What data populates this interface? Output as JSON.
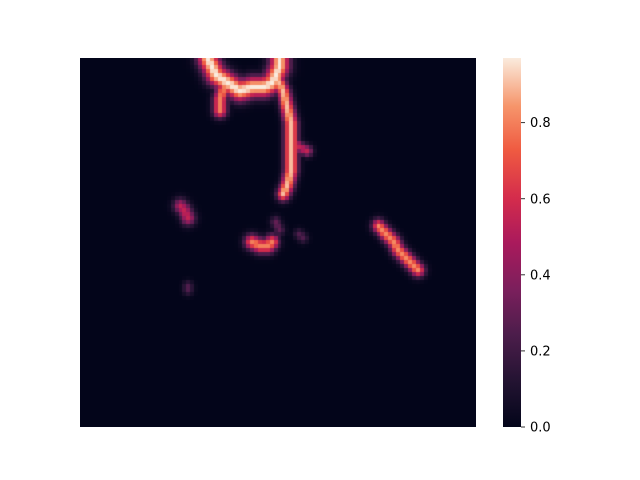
{
  "chart_data": {
    "type": "heatmap",
    "title": "",
    "xlabel": "",
    "ylabel": "",
    "x_ticks_visible": false,
    "y_ticks_visible": false,
    "colormap": "rocket",
    "colorbar": {
      "range": [
        0.0,
        0.97
      ],
      "ticks": [
        {
          "value": 0.0,
          "label": "0.0"
        },
        {
          "value": 0.2,
          "label": "0.2"
        },
        {
          "value": 0.4,
          "label": "0.4"
        },
        {
          "value": 0.6,
          "label": "0.6"
        },
        {
          "value": 0.8,
          "label": "0.8"
        }
      ],
      "placement": "right"
    },
    "grid": {
      "cols": 100,
      "rows": 93
    },
    "background_value": 0.0,
    "features": [
      {
        "name": "top-ridge",
        "path": [
          [
            32,
            0
          ],
          [
            34,
            4
          ],
          [
            37,
            6
          ],
          [
            40,
            8
          ],
          [
            43,
            7
          ],
          [
            46,
            7
          ],
          [
            48,
            6
          ],
          [
            49,
            4
          ],
          [
            50,
            2
          ],
          [
            50,
            0
          ]
        ],
        "peak": 0.97,
        "width": 1.8
      },
      {
        "name": "top-ridge-drop",
        "path": [
          [
            36,
            7
          ],
          [
            35,
            10
          ],
          [
            35,
            13
          ]
        ],
        "peak": 0.8,
        "width": 1.2
      },
      {
        "name": "vertical-branch",
        "path": [
          [
            49,
            4
          ],
          [
            51,
            8
          ],
          [
            52,
            12
          ],
          [
            53,
            16
          ],
          [
            53,
            20
          ],
          [
            53,
            24
          ],
          [
            53,
            28
          ],
          [
            52,
            32
          ],
          [
            51,
            34
          ]
        ],
        "peak": 0.9,
        "width": 1.2
      },
      {
        "name": "branch-spur",
        "path": [
          [
            53,
            20
          ],
          [
            55,
            22
          ],
          [
            57,
            23
          ]
        ],
        "peak": 0.55,
        "width": 1.0
      },
      {
        "name": "left-patch",
        "path": [
          [
            25,
            37
          ],
          [
            26,
            38
          ],
          [
            27,
            40
          ]
        ],
        "peak": 0.55,
        "width": 1.3
      },
      {
        "name": "center-segment",
        "path": [
          [
            43,
            46
          ],
          [
            45,
            47
          ],
          [
            47,
            47
          ],
          [
            48,
            46
          ]
        ],
        "peak": 0.8,
        "width": 1.3
      },
      {
        "name": "center-small",
        "path": [
          [
            49,
            41
          ],
          [
            50,
            43
          ]
        ],
        "peak": 0.3,
        "width": 1.0
      },
      {
        "name": "right-segment",
        "path": [
          [
            75,
            42
          ],
          [
            77,
            44
          ],
          [
            79,
            46
          ],
          [
            80,
            48
          ],
          [
            82,
            50
          ],
          [
            85,
            53
          ]
        ],
        "peak": 0.82,
        "width": 1.2
      },
      {
        "name": "small-dot-left",
        "path": [
          [
            27,
            57
          ],
          [
            27,
            58
          ]
        ],
        "peak": 0.25,
        "width": 0.9
      },
      {
        "name": "small-dot-center",
        "path": [
          [
            55,
            44
          ],
          [
            56,
            45
          ]
        ],
        "peak": 0.25,
        "width": 0.9
      }
    ]
  }
}
